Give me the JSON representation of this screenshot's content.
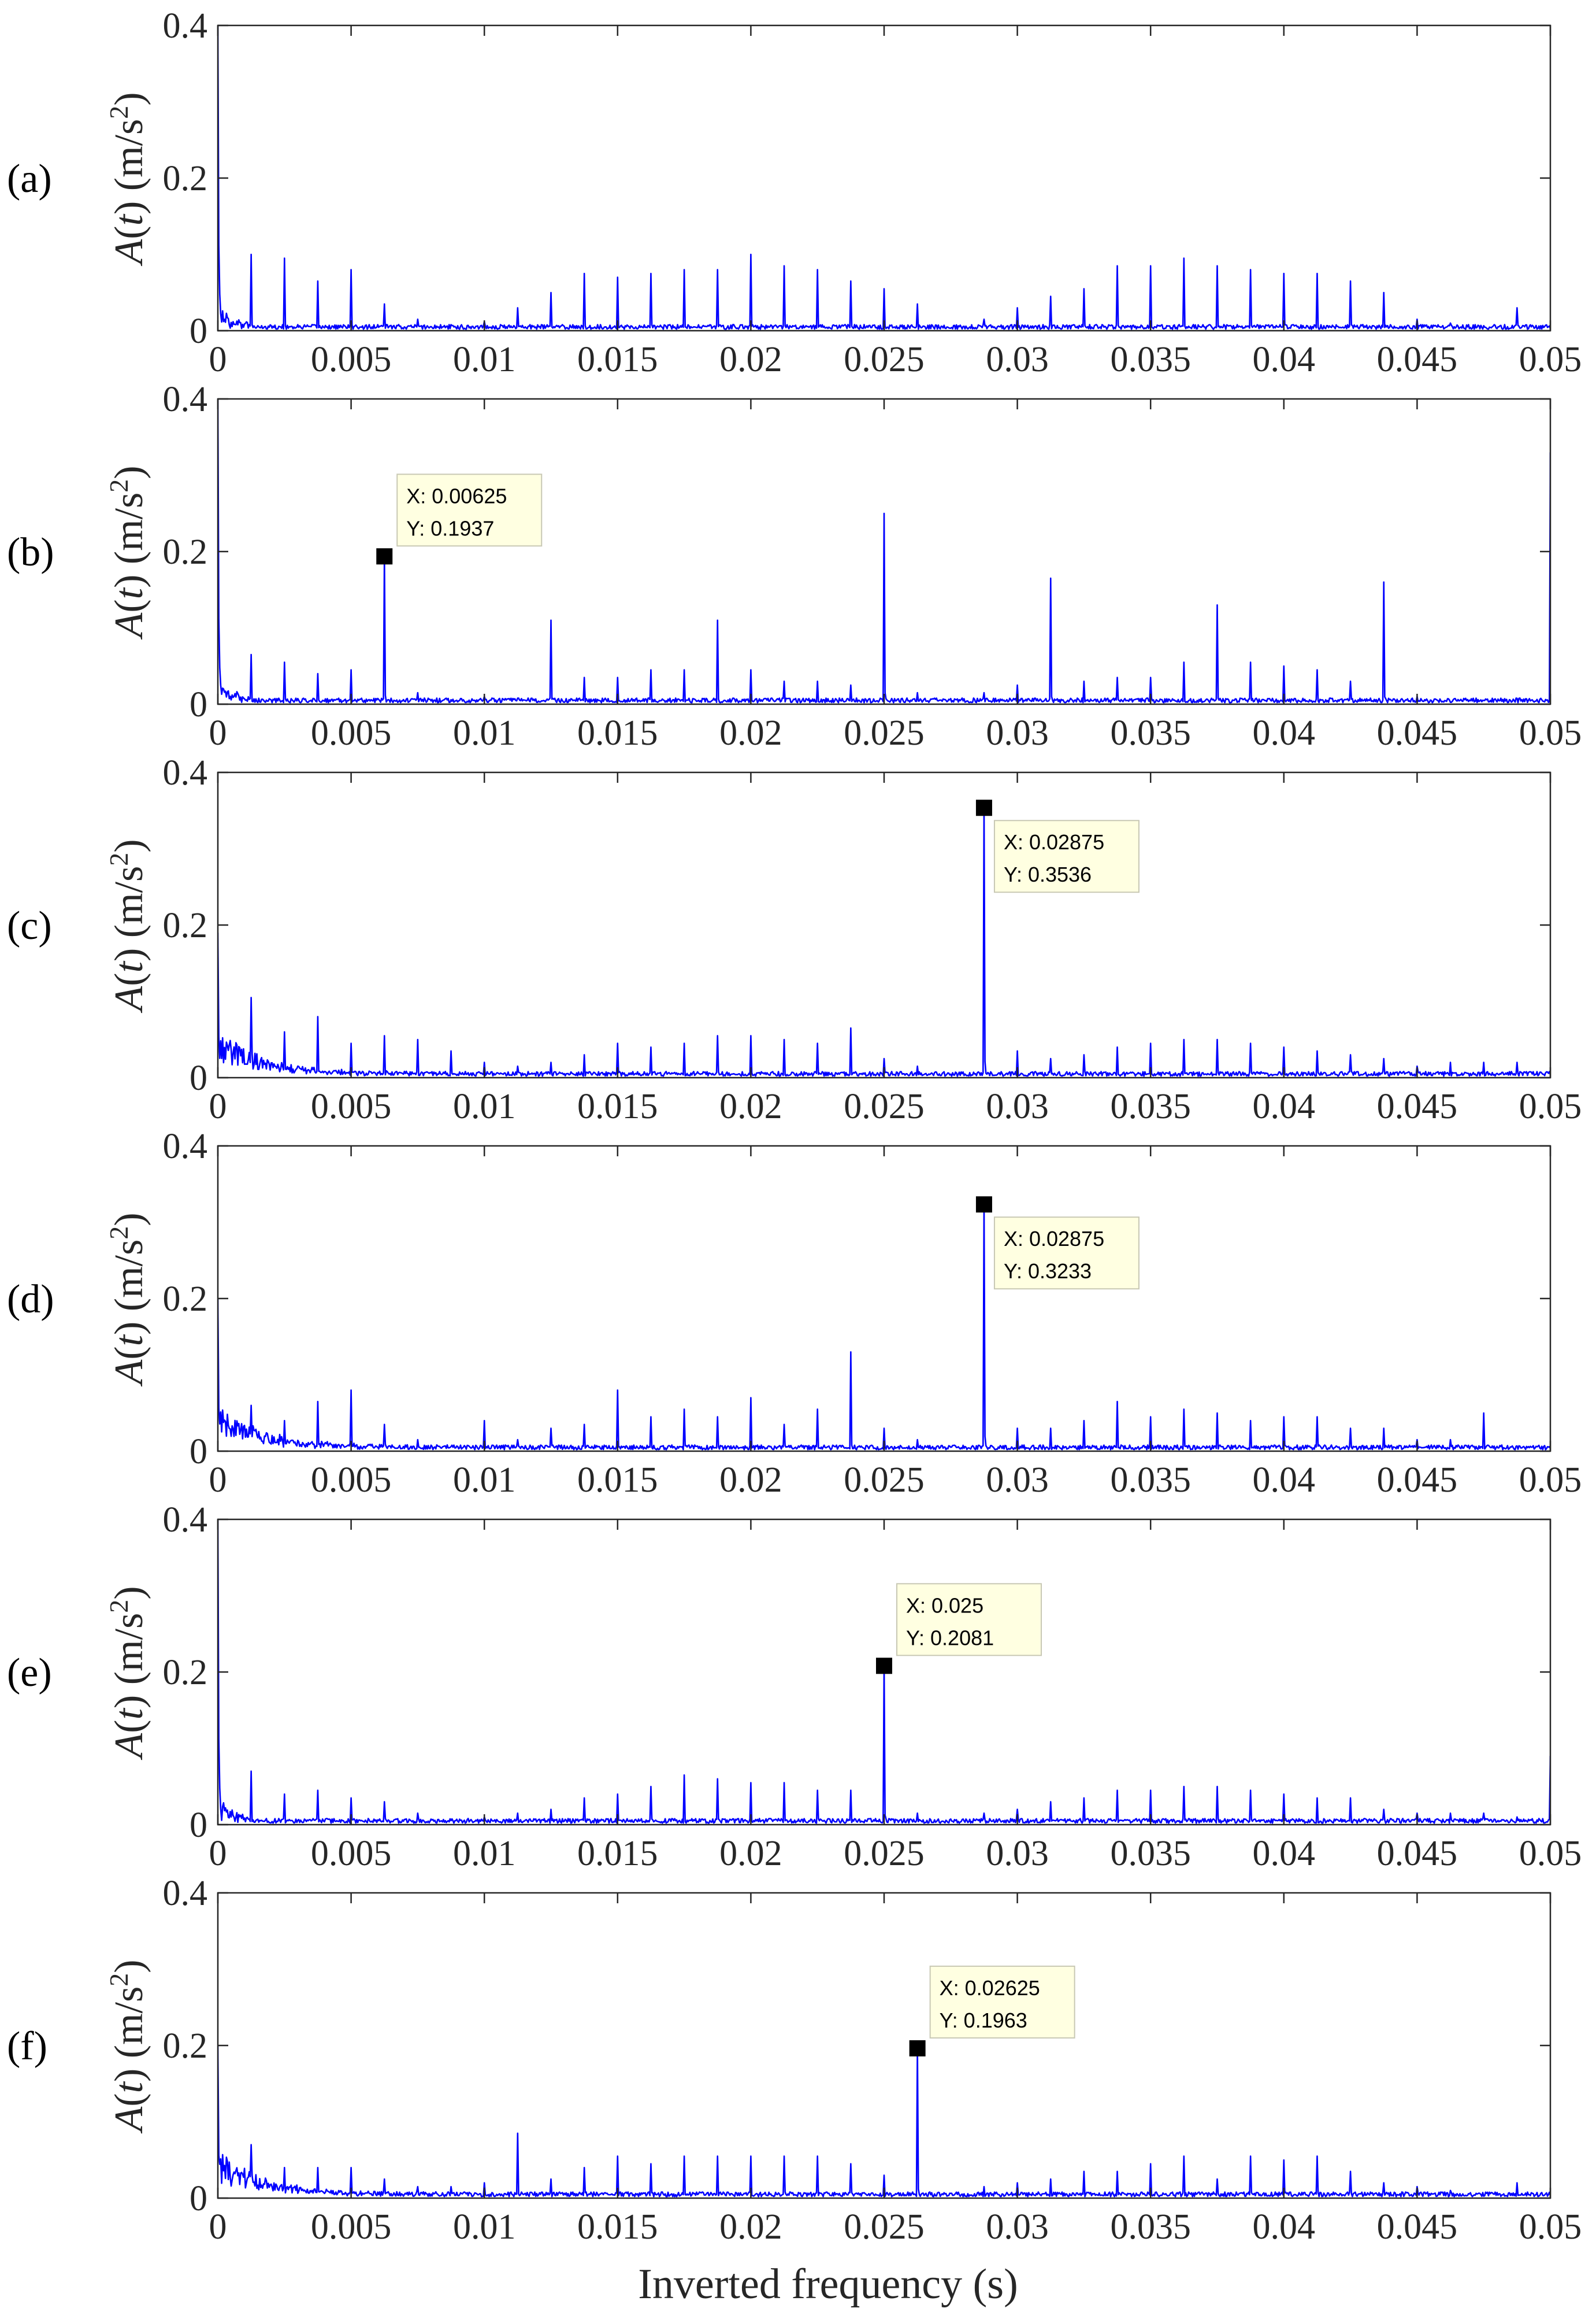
{
  "chart_data": {
    "type": "line",
    "xlabel": "Inverted frequency (s)",
    "ylabel_var": "A",
    "ylabel_arg": "t",
    "ylabel_unit": "(m/s",
    "ylabel_exp": "2",
    "ylabel_close": ")",
    "xlim": [
      0,
      0.05
    ],
    "ylim": [
      0,
      0.4
    ],
    "xticks": [
      0,
      0.005,
      0.01,
      0.015,
      0.02,
      0.025,
      0.03,
      0.035,
      0.04,
      0.045,
      0.05
    ],
    "xtick_labels": [
      "0",
      "0.005",
      "0.01",
      "0.015",
      "0.02",
      "0.025",
      "0.03",
      "0.035",
      "0.04",
      "0.045",
      "0.05"
    ],
    "yticks": [
      0,
      0.2,
      0.4
    ],
    "ytick_labels": [
      "0",
      "0.2",
      "0.4"
    ],
    "line_color": "#0000ff",
    "panels": [
      {
        "label": "(a)",
        "start_spike": 0.4,
        "spikes": [
          [
            0.00125,
            0.1
          ],
          [
            0.0025,
            0.095
          ],
          [
            0.00375,
            0.065
          ],
          [
            0.005,
            0.08
          ],
          [
            0.00625,
            0.035
          ],
          [
            0.0075,
            0.015
          ],
          [
            0.01,
            0.012
          ],
          [
            0.01125,
            0.03
          ],
          [
            0.0125,
            0.05
          ],
          [
            0.01375,
            0.075
          ],
          [
            0.015,
            0.07
          ],
          [
            0.01625,
            0.075
          ],
          [
            0.0175,
            0.08
          ],
          [
            0.01875,
            0.08
          ],
          [
            0.02,
            0.1
          ],
          [
            0.02125,
            0.085
          ],
          [
            0.0225,
            0.08
          ],
          [
            0.02375,
            0.065
          ],
          [
            0.025,
            0.055
          ],
          [
            0.02625,
            0.035
          ],
          [
            0.02875,
            0.015
          ],
          [
            0.03,
            0.03
          ],
          [
            0.03125,
            0.045
          ],
          [
            0.0325,
            0.055
          ],
          [
            0.03375,
            0.085
          ],
          [
            0.035,
            0.085
          ],
          [
            0.03625,
            0.095
          ],
          [
            0.0375,
            0.085
          ],
          [
            0.03875,
            0.08
          ],
          [
            0.04,
            0.075
          ],
          [
            0.04125,
            0.075
          ],
          [
            0.0425,
            0.065
          ],
          [
            0.04375,
            0.05
          ],
          [
            0.045,
            0.015
          ],
          [
            0.04625,
            0.01
          ],
          [
            0.04875,
            0.03
          ]
        ],
        "datatip": null
      },
      {
        "label": "(b)",
        "start_spike": 0.4,
        "end_spike": 0.33,
        "spikes": [
          [
            0.00125,
            0.065
          ],
          [
            0.0025,
            0.055
          ],
          [
            0.00375,
            0.04
          ],
          [
            0.005,
            0.045
          ],
          [
            0.00625,
            0.1937
          ],
          [
            0.0075,
            0.015
          ],
          [
            0.01,
            0.01
          ],
          [
            0.0125,
            0.11
          ],
          [
            0.01375,
            0.035
          ],
          [
            0.015,
            0.035
          ],
          [
            0.01625,
            0.045
          ],
          [
            0.0175,
            0.045
          ],
          [
            0.01875,
            0.11
          ],
          [
            0.02,
            0.045
          ],
          [
            0.02125,
            0.03
          ],
          [
            0.0225,
            0.03
          ],
          [
            0.02375,
            0.025
          ],
          [
            0.025,
            0.25
          ],
          [
            0.02625,
            0.015
          ],
          [
            0.02875,
            0.015
          ],
          [
            0.03,
            0.025
          ],
          [
            0.03125,
            0.165
          ],
          [
            0.0325,
            0.03
          ],
          [
            0.03375,
            0.035
          ],
          [
            0.035,
            0.035
          ],
          [
            0.03625,
            0.055
          ],
          [
            0.0375,
            0.13
          ],
          [
            0.03875,
            0.055
          ],
          [
            0.04,
            0.05
          ],
          [
            0.04125,
            0.045
          ],
          [
            0.0425,
            0.03
          ],
          [
            0.04375,
            0.16
          ],
          [
            0.045,
            0.01
          ]
        ],
        "datatip": {
          "x": 0.00625,
          "y": 0.1937,
          "x_text": "X: 0.00625",
          "y_text": "Y: 0.1937",
          "placement": "above-right"
        }
      },
      {
        "label": "(c)",
        "start_spike": 0.19,
        "noise": true,
        "spikes": [
          [
            0.00125,
            0.105
          ],
          [
            0.0025,
            0.06
          ],
          [
            0.00375,
            0.08
          ],
          [
            0.005,
            0.045
          ],
          [
            0.00625,
            0.055
          ],
          [
            0.0075,
            0.05
          ],
          [
            0.00875,
            0.035
          ],
          [
            0.01,
            0.02
          ],
          [
            0.01125,
            0.015
          ],
          [
            0.0125,
            0.02
          ],
          [
            0.01375,
            0.03
          ],
          [
            0.015,
            0.045
          ],
          [
            0.01625,
            0.04
          ],
          [
            0.0175,
            0.045
          ],
          [
            0.01875,
            0.055
          ],
          [
            0.02,
            0.055
          ],
          [
            0.02125,
            0.05
          ],
          [
            0.0225,
            0.045
          ],
          [
            0.02375,
            0.065
          ],
          [
            0.025,
            0.025
          ],
          [
            0.02625,
            0.015
          ],
          [
            0.02875,
            0.3536
          ],
          [
            0.03,
            0.035
          ],
          [
            0.03125,
            0.025
          ],
          [
            0.0325,
            0.03
          ],
          [
            0.03375,
            0.04
          ],
          [
            0.035,
            0.045
          ],
          [
            0.03625,
            0.05
          ],
          [
            0.0375,
            0.05
          ],
          [
            0.03875,
            0.045
          ],
          [
            0.04,
            0.04
          ],
          [
            0.04125,
            0.035
          ],
          [
            0.0425,
            0.03
          ],
          [
            0.04375,
            0.025
          ],
          [
            0.045,
            0.015
          ],
          [
            0.04625,
            0.02
          ],
          [
            0.0475,
            0.02
          ],
          [
            0.04875,
            0.02
          ]
        ],
        "datatip": {
          "x": 0.02875,
          "y": 0.3536,
          "x_text": "X: 0.02875",
          "y_text": "Y: 0.3536",
          "placement": "below-right"
        }
      },
      {
        "label": "(d)",
        "start_spike": 0.2,
        "noise": true,
        "spikes": [
          [
            0.00125,
            0.06
          ],
          [
            0.0025,
            0.04
          ],
          [
            0.00375,
            0.065
          ],
          [
            0.005,
            0.08
          ],
          [
            0.00625,
            0.035
          ],
          [
            0.0075,
            0.015
          ],
          [
            0.01,
            0.04
          ],
          [
            0.01125,
            0.015
          ],
          [
            0.0125,
            0.03
          ],
          [
            0.01375,
            0.035
          ],
          [
            0.015,
            0.08
          ],
          [
            0.01625,
            0.045
          ],
          [
            0.0175,
            0.055
          ],
          [
            0.01875,
            0.045
          ],
          [
            0.02,
            0.07
          ],
          [
            0.02125,
            0.035
          ],
          [
            0.0225,
            0.055
          ],
          [
            0.02375,
            0.13
          ],
          [
            0.025,
            0.03
          ],
          [
            0.02625,
            0.015
          ],
          [
            0.02875,
            0.3233
          ],
          [
            0.03,
            0.03
          ],
          [
            0.03125,
            0.03
          ],
          [
            0.0325,
            0.04
          ],
          [
            0.03375,
            0.065
          ],
          [
            0.035,
            0.045
          ],
          [
            0.03625,
            0.055
          ],
          [
            0.0375,
            0.05
          ],
          [
            0.03875,
            0.04
          ],
          [
            0.04,
            0.045
          ],
          [
            0.04125,
            0.045
          ],
          [
            0.0425,
            0.03
          ],
          [
            0.04375,
            0.03
          ],
          [
            0.045,
            0.015
          ],
          [
            0.04625,
            0.015
          ],
          [
            0.0475,
            0.05
          ]
        ],
        "datatip": {
          "x": 0.02875,
          "y": 0.3233,
          "x_text": "X: 0.02875",
          "y_text": "Y: 0.3233",
          "placement": "below-right"
        }
      },
      {
        "label": "(e)",
        "start_spike": 0.4,
        "end_spike": 0.09,
        "spikes": [
          [
            0.00125,
            0.07
          ],
          [
            0.0025,
            0.04
          ],
          [
            0.00375,
            0.045
          ],
          [
            0.005,
            0.035
          ],
          [
            0.00625,
            0.03
          ],
          [
            0.0075,
            0.015
          ],
          [
            0.01,
            0.01
          ],
          [
            0.01125,
            0.015
          ],
          [
            0.0125,
            0.02
          ],
          [
            0.01375,
            0.035
          ],
          [
            0.015,
            0.04
          ],
          [
            0.01625,
            0.05
          ],
          [
            0.0175,
            0.065
          ],
          [
            0.01875,
            0.06
          ],
          [
            0.02,
            0.055
          ],
          [
            0.02125,
            0.055
          ],
          [
            0.0225,
            0.045
          ],
          [
            0.02375,
            0.045
          ],
          [
            0.025,
            0.2081
          ],
          [
            0.02625,
            0.015
          ],
          [
            0.02875,
            0.015
          ],
          [
            0.03,
            0.02
          ],
          [
            0.03125,
            0.03
          ],
          [
            0.0325,
            0.035
          ],
          [
            0.03375,
            0.045
          ],
          [
            0.035,
            0.045
          ],
          [
            0.03625,
            0.05
          ],
          [
            0.0375,
            0.05
          ],
          [
            0.03875,
            0.045
          ],
          [
            0.04,
            0.04
          ],
          [
            0.04125,
            0.035
          ],
          [
            0.0425,
            0.035
          ],
          [
            0.04375,
            0.02
          ],
          [
            0.045,
            0.015
          ],
          [
            0.04625,
            0.015
          ],
          [
            0.0475,
            0.015
          ],
          [
            0.04875,
            0.01
          ]
        ],
        "datatip": {
          "x": 0.025,
          "y": 0.2081,
          "x_text": "X: 0.025",
          "y_text": "Y: 0.2081",
          "placement": "above-right"
        }
      },
      {
        "label": "(f)",
        "start_spike": 0.2,
        "noise": true,
        "spikes": [
          [
            0.00125,
            0.07
          ],
          [
            0.0025,
            0.04
          ],
          [
            0.00375,
            0.04
          ],
          [
            0.005,
            0.04
          ],
          [
            0.00625,
            0.025
          ],
          [
            0.0075,
            0.015
          ],
          [
            0.00875,
            0.015
          ],
          [
            0.01,
            0.02
          ],
          [
            0.01125,
            0.085
          ],
          [
            0.0125,
            0.025
          ],
          [
            0.01375,
            0.04
          ],
          [
            0.015,
            0.055
          ],
          [
            0.01625,
            0.045
          ],
          [
            0.0175,
            0.055
          ],
          [
            0.01875,
            0.055
          ],
          [
            0.02,
            0.055
          ],
          [
            0.02125,
            0.055
          ],
          [
            0.0225,
            0.055
          ],
          [
            0.02375,
            0.045
          ],
          [
            0.025,
            0.03
          ],
          [
            0.02625,
            0.1963
          ],
          [
            0.02875,
            0.015
          ],
          [
            0.03,
            0.02
          ],
          [
            0.03125,
            0.025
          ],
          [
            0.0325,
            0.035
          ],
          [
            0.03375,
            0.035
          ],
          [
            0.035,
            0.045
          ],
          [
            0.03625,
            0.055
          ],
          [
            0.0375,
            0.025
          ],
          [
            0.03875,
            0.055
          ],
          [
            0.04,
            0.05
          ],
          [
            0.04125,
            0.055
          ],
          [
            0.0425,
            0.035
          ],
          [
            0.04375,
            0.02
          ],
          [
            0.045,
            0.015
          ],
          [
            0.04625,
            0.01
          ],
          [
            0.04875,
            0.02
          ]
        ],
        "datatip": {
          "x": 0.02625,
          "y": 0.1963,
          "x_text": "X: 0.02625",
          "y_text": "Y: 0.1963",
          "placement": "above-right"
        }
      }
    ]
  }
}
